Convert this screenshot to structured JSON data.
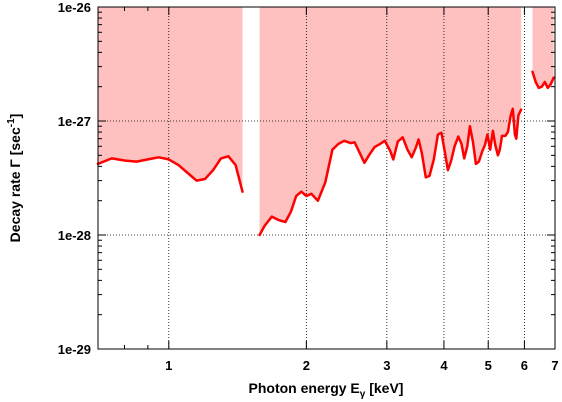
{
  "chart_data": {
    "type": "line",
    "title": "",
    "x_scale": "log",
    "y_scale": "log",
    "xlim": [
      0.7,
      7.0
    ],
    "ylim": [
      1e-29,
      1e-26
    ],
    "grid": true,
    "colors": {
      "band": "#ffc0c0",
      "line": "#ff0000",
      "grid": "#000000"
    },
    "x_ticks": [
      {
        "value": 1,
        "label": "1"
      },
      {
        "value": 2,
        "label": "2"
      },
      {
        "value": 3,
        "label": "3"
      },
      {
        "value": 4,
        "label": "4"
      },
      {
        "value": 5,
        "label": "5"
      },
      {
        "value": 6,
        "label": "6"
      },
      {
        "value": 7,
        "label": "7"
      }
    ],
    "y_ticks": [
      {
        "value": 1e-29,
        "label": "1e-29"
      },
      {
        "value": 1e-28,
        "label": "1e-28"
      },
      {
        "value": 1e-27,
        "label": "1e-27"
      },
      {
        "value": 1e-26,
        "label": "1e-26"
      }
    ],
    "xlabel": {
      "main": "Photon energy E",
      "sub": "γ",
      "unit": " [keV]"
    },
    "ylabel": {
      "main": "Decay rate Γ [sec",
      "sup": "-1",
      "close": "]"
    },
    "series": [
      {
        "kind": "upper-limit",
        "segments": [
          [
            [
              0.7,
              4.2e-28
            ],
            [
              0.75,
              4.7e-28
            ],
            [
              0.8,
              4.5e-28
            ],
            [
              0.85,
              4.4e-28
            ],
            [
              0.9,
              4.6e-28
            ],
            [
              0.95,
              4.8e-28
            ],
            [
              1.0,
              4.6e-28
            ],
            [
              1.05,
              4.1e-28
            ],
            [
              1.1,
              3.5e-28
            ],
            [
              1.15,
              3e-28
            ],
            [
              1.2,
              3.1e-28
            ],
            [
              1.25,
              3.7e-28
            ],
            [
              1.3,
              4.7e-28
            ],
            [
              1.35,
              4.9e-28
            ],
            [
              1.4,
              4.1e-28
            ],
            [
              1.45,
              2.4e-28
            ]
          ],
          [
            [
              1.58,
              1e-28
            ],
            [
              1.62,
              1.2e-28
            ],
            [
              1.68,
              1.45e-28
            ],
            [
              1.74,
              1.35e-28
            ],
            [
              1.8,
              1.3e-28
            ],
            [
              1.85,
              1.6e-28
            ],
            [
              1.9,
              2.2e-28
            ],
            [
              1.95,
              2.4e-28
            ],
            [
              2.0,
              2.2e-28
            ],
            [
              2.05,
              2.3e-28
            ],
            [
              2.12,
              2e-28
            ],
            [
              2.2,
              2.9e-28
            ],
            [
              2.28,
              5.6e-28
            ],
            [
              2.35,
              6.3e-28
            ],
            [
              2.42,
              6.7e-28
            ],
            [
              2.5,
              6.4e-28
            ],
            [
              2.55,
              6.5e-28
            ],
            [
              2.62,
              5.2e-28
            ],
            [
              2.68,
              4.3e-28
            ],
            [
              2.75,
              5.1e-28
            ],
            [
              2.82,
              5.9e-28
            ],
            [
              2.9,
              6.3e-28
            ],
            [
              2.97,
              6.7e-28
            ],
            [
              3.05,
              5.5e-28
            ],
            [
              3.1,
              4.6e-28
            ],
            [
              3.17,
              6.6e-28
            ],
            [
              3.25,
              7.2e-28
            ],
            [
              3.33,
              5.6e-28
            ],
            [
              3.4,
              4.8e-28
            ],
            [
              3.47,
              5.8e-28
            ],
            [
              3.52,
              6.9e-28
            ],
            [
              3.58,
              5.2e-28
            ],
            [
              3.65,
              3.2e-28
            ],
            [
              3.72,
              3.3e-28
            ],
            [
              3.8,
              4.6e-28
            ],
            [
              3.88,
              7.6e-28
            ],
            [
              3.95,
              7.9e-28
            ],
            [
              4.02,
              5.3e-28
            ],
            [
              4.08,
              3.7e-28
            ],
            [
              4.15,
              4.5e-28
            ],
            [
              4.22,
              6e-28
            ],
            [
              4.3,
              7.3e-28
            ],
            [
              4.37,
              6.3e-28
            ],
            [
              4.43,
              4.7e-28
            ],
            [
              4.5,
              6e-28
            ],
            [
              4.56,
              9e-28
            ],
            [
              4.63,
              6.5e-28
            ],
            [
              4.7,
              4.2e-28
            ],
            [
              4.77,
              4.4e-28
            ],
            [
              4.85,
              5.4e-28
            ],
            [
              4.92,
              6.2e-28
            ],
            [
              4.98,
              7.6e-28
            ],
            [
              5.05,
              5.6e-28
            ],
            [
              5.12,
              8.2e-28
            ],
            [
              5.18,
              6.2e-28
            ],
            [
              5.25,
              5e-28
            ],
            [
              5.3,
              5.6e-28
            ],
            [
              5.36,
              7.4e-28
            ],
            [
              5.45,
              7.4e-28
            ],
            [
              5.52,
              8e-28
            ],
            [
              5.6,
              1.12e-27
            ],
            [
              5.66,
              1.28e-27
            ],
            [
              5.72,
              7.6e-28
            ],
            [
              5.76,
              7e-28
            ],
            [
              5.82,
              1.12e-27
            ],
            [
              5.9,
              1.26e-27
            ]
          ],
          [
            [
              6.25,
              2.7e-27
            ],
            [
              6.35,
              2.2e-27
            ],
            [
              6.45,
              1.95e-27
            ],
            [
              6.55,
              2e-27
            ],
            [
              6.65,
              2.2e-27
            ],
            [
              6.75,
              1.95e-27
            ],
            [
              6.85,
              2.1e-27
            ],
            [
              6.95,
              2.4e-27
            ]
          ]
        ]
      }
    ]
  }
}
